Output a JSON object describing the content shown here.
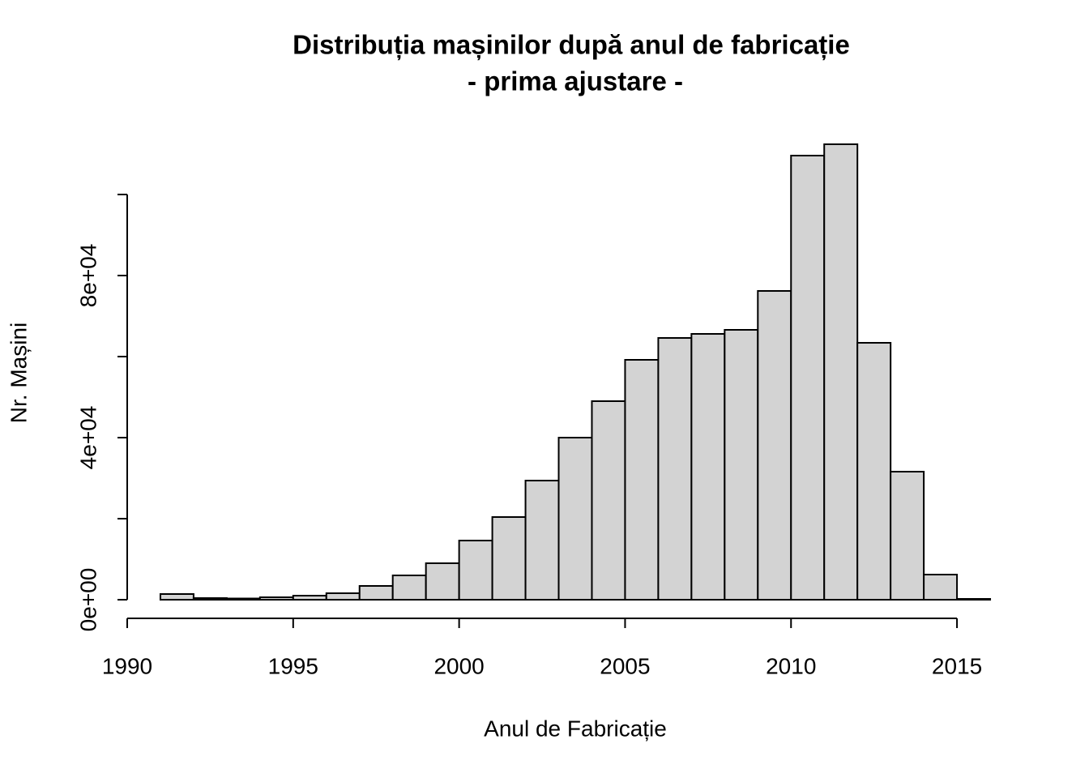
{
  "chart_data": {
    "type": "histogram",
    "title": "Distribuția mașinilor după anul de fabricație",
    "subtitle": "- prima ajustare -",
    "x_label": "Anul de Fabricație",
    "y_label": "Nr. Mașini",
    "bins": [
      1991,
      1992,
      1993,
      1994,
      1995,
      1996,
      1997,
      1998,
      1999,
      2000,
      2001,
      2002,
      2003,
      2004,
      2005,
      2006,
      2007,
      2008,
      2009,
      2010,
      2011,
      2012,
      2013,
      2014,
      2015,
      2016
    ],
    "values": [
      1400,
      400,
      300,
      600,
      1000,
      1600,
      3400,
      6000,
      9000,
      14600,
      20400,
      29400,
      40000,
      49000,
      59200,
      64600,
      65600,
      66600,
      76200,
      109600,
      112400,
      63400,
      31600,
      6200,
      200
    ],
    "color": "#d3d3d3",
    "xlim": [
      1990,
      2017
    ],
    "ylim": [
      0,
      112400
    ],
    "xticks": [
      1990,
      1995,
      2000,
      2005,
      2010,
      2015
    ],
    "yticks": [
      {
        "value": 0,
        "label": "0e+00"
      },
      {
        "value": 40000,
        "label": "4e+04"
      },
      {
        "value": 80000,
        "label": "8e+04"
      }
    ],
    "yticks_unlabeled": [
      20000,
      60000,
      100000
    ],
    "grid": false
  }
}
